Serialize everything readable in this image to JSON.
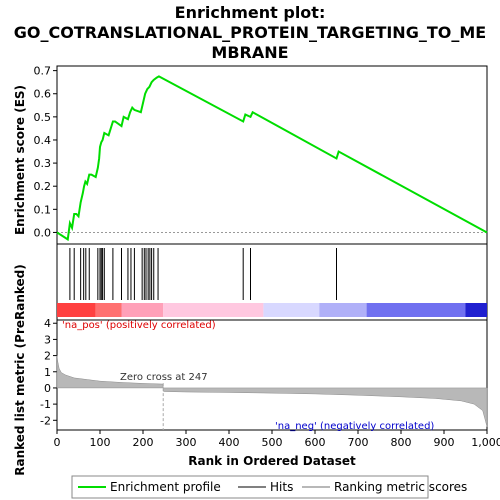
{
  "chart_data": {
    "type": "line",
    "title_lines": [
      "Enrichment plot:",
      "GO_COTRANSLATIONAL_PROTEIN_TARGETING_TO_ME",
      "MBRANE"
    ],
    "xlabel": "Rank in Ordered Dataset",
    "es_panel": {
      "ylabel": "Enrichment score (ES)",
      "ylim": [
        -0.05,
        0.72
      ],
      "yticks": [
        "0.0",
        "0.1",
        "0.2",
        "0.3",
        "0.4",
        "0.5",
        "0.6",
        "0.7"
      ],
      "line_color": "#00dd00",
      "series": {
        "name": "Enrichment profile",
        "x": [
          0,
          25,
          30,
          35,
          40,
          45,
          50,
          55,
          60,
          63,
          66,
          70,
          75,
          80,
          90,
          95,
          98,
          100,
          103,
          106,
          110,
          120,
          130,
          135,
          150,
          155,
          165,
          170,
          175,
          180,
          195,
          200,
          205,
          210,
          215,
          220,
          225,
          232,
          237,
          433,
          438,
          450,
          455,
          650,
          655,
          1000
        ],
        "y": [
          0.0,
          -0.03,
          0.04,
          0.02,
          0.08,
          0.08,
          0.07,
          0.13,
          0.17,
          0.2,
          0.22,
          0.21,
          0.25,
          0.25,
          0.24,
          0.28,
          0.32,
          0.37,
          0.39,
          0.4,
          0.43,
          0.42,
          0.48,
          0.48,
          0.46,
          0.5,
          0.49,
          0.52,
          0.54,
          0.53,
          0.52,
          0.56,
          0.6,
          0.62,
          0.63,
          0.65,
          0.66,
          0.67,
          0.675,
          0.48,
          0.51,
          0.5,
          0.52,
          0.32,
          0.35,
          0.0
        ]
      }
    },
    "hits": {
      "name": "Hits",
      "ranks": [
        30,
        40,
        55,
        62,
        67,
        75,
        95,
        100,
        103,
        106,
        110,
        130,
        150,
        165,
        172,
        180,
        198,
        203,
        207,
        212,
        216,
        220,
        225,
        235,
        433,
        450,
        650
      ]
    },
    "rank_metric_panel": {
      "ylabel": "Ranked list metric (PreRanked)",
      "name": "Ranking metric scores",
      "ylim": [
        -2.6,
        4.2
      ],
      "yticks": [
        "-2",
        "-1",
        "0",
        "1",
        "2",
        "3",
        "4"
      ],
      "zero_cross_label": "Zero cross at 247",
      "zero_cross_rank": 247,
      "pos_label": "'na_pos' (positively correlated)",
      "neg_label": "'na_neg' (negatively correlated)",
      "x": [
        0,
        2,
        5,
        10,
        20,
        40,
        70,
        100,
        150,
        200,
        246,
        248,
        300,
        400,
        500,
        600,
        700,
        800,
        880,
        940,
        970,
        990,
        995,
        1000
      ],
      "y": [
        2.0,
        1.6,
        1.2,
        0.95,
        0.8,
        0.62,
        0.52,
        0.42,
        0.34,
        0.28,
        0.24,
        -0.22,
        -0.25,
        -0.28,
        -0.32,
        -0.37,
        -0.45,
        -0.55,
        -0.65,
        -0.8,
        -1.0,
        -1.4,
        -1.9,
        -2.4
      ]
    },
    "xaxis": {
      "xlim": [
        0,
        1000
      ],
      "xticks": [
        "0",
        "100",
        "200",
        "300",
        "400",
        "500",
        "600",
        "700",
        "800",
        "900",
        "1,000"
      ]
    },
    "colorbar": {
      "colors": [
        "#ff4040",
        "#ff7070",
        "#ffa0b8",
        "#ffc8e0",
        "#d8d8ff",
        "#b0b0f8",
        "#7070f0",
        "#2020d0"
      ],
      "stops": [
        0,
        90,
        150,
        247,
        480,
        610,
        720,
        950,
        1000
      ]
    },
    "legend": {
      "position": "bottom",
      "items": [
        "Enrichment profile",
        "Hits",
        "Ranking metric scores"
      ]
    }
  }
}
